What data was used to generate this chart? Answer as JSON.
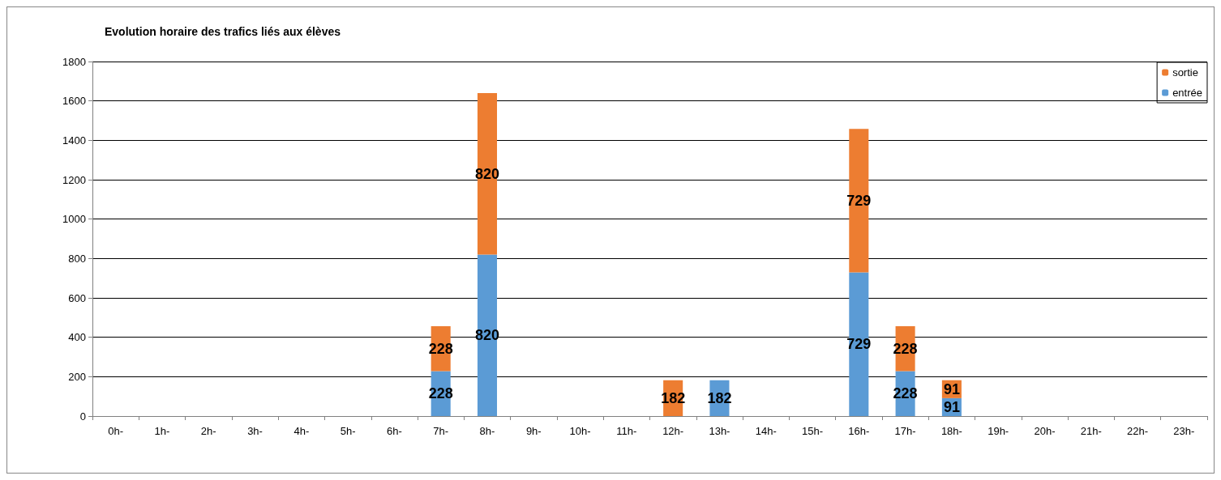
{
  "chart_data": {
    "type": "bar",
    "title": "Evolution horaire des trafics liés aux élèves",
    "stacked": true,
    "data_labels": true,
    "legend": "top right",
    "grid": "y",
    "ylim": [
      0,
      1800
    ],
    "yticks": [
      0,
      200,
      400,
      600,
      800,
      1000,
      1200,
      1400,
      1600,
      1800
    ],
    "categories": [
      "0h-",
      "1h-",
      "2h-",
      "3h-",
      "4h-",
      "5h-",
      "6h-",
      "7h-",
      "8h-",
      "9h-",
      "10h-",
      "11h-",
      "12h-",
      "13h-",
      "14h-",
      "15h-",
      "16h-",
      "17h-",
      "18h-",
      "19h-",
      "20h-",
      "21h-",
      "22h-",
      "23h-"
    ],
    "series": [
      {
        "name": "entrée",
        "color": "#5b9bd5",
        "values": [
          null,
          null,
          null,
          null,
          null,
          null,
          null,
          228,
          820,
          null,
          null,
          null,
          null,
          182,
          null,
          null,
          729,
          228,
          91,
          null,
          null,
          null,
          null,
          null
        ]
      },
      {
        "name": "sortie",
        "color": "#ed7d31",
        "values": [
          null,
          null,
          null,
          null,
          null,
          null,
          null,
          228,
          820,
          null,
          null,
          null,
          182,
          null,
          null,
          null,
          729,
          228,
          91,
          null,
          null,
          null,
          null,
          null
        ]
      }
    ]
  }
}
